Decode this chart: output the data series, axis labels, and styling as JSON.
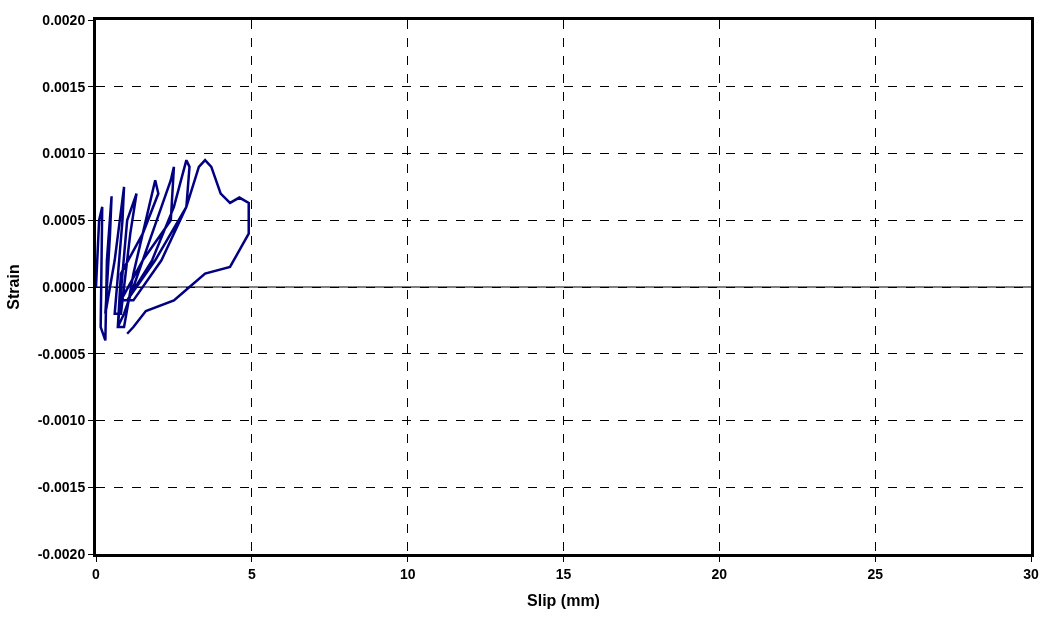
{
  "chart_data": {
    "type": "line",
    "xlabel": "Slip (mm)",
    "ylabel": "Strain",
    "xlim": [
      0,
      30
    ],
    "xticks": [
      0,
      5,
      10,
      15,
      20,
      25,
      30
    ],
    "ylim": [
      -0.002,
      0.002
    ],
    "yticks": [
      {
        "value": -0.002,
        "label": "-0.0020"
      },
      {
        "value": -0.0015,
        "label": "-0.0015"
      },
      {
        "value": -0.001,
        "label": "-0.0010"
      },
      {
        "value": -0.0005,
        "label": "-0.0005"
      },
      {
        "value": 0,
        "label": "0.0000"
      },
      {
        "value": 0.0005,
        "label": "0.0005"
      },
      {
        "value": 0.001,
        "label": "0.0010"
      },
      {
        "value": 0.0015,
        "label": "0.0015"
      },
      {
        "value": 0.002,
        "label": "0.0020"
      }
    ],
    "grid": true,
    "marker": "none",
    "line_style": "solid",
    "ref_lines": [
      {
        "axis": "y",
        "value": 0,
        "color": "#000000",
        "line_style": "solid"
      }
    ],
    "series": [
      {
        "color": "#000080",
        "x": [
          0,
          0.1,
          0.2,
          0.15,
          0.3,
          0.35,
          0.5,
          0.45,
          0.3,
          0.6,
          0.9,
          0.85,
          0.6,
          0.8,
          1.1,
          1.3,
          1.0,
          0.7,
          0.9,
          1.2,
          1.7,
          1.9,
          2.0,
          1.5,
          0.8,
          0.7,
          0.9,
          1.5,
          2.1,
          2.4,
          2.5,
          2.4,
          1.5,
          0.8,
          1.0,
          1.8,
          2.5,
          2.9,
          3.0,
          2.9,
          1.9,
          1.0,
          1.2,
          2.1,
          2.9,
          3.3,
          3.5,
          3.7,
          4.0,
          4.3,
          4.6,
          4.9,
          4.9,
          4.3,
          3.5,
          3.0,
          2.5,
          1.6,
          1.2,
          1.0
        ],
        "values": [
          0,
          0.0005,
          0.0006,
          -0.0003,
          -0.0004,
          0.0002,
          0.00068,
          0.0004,
          -0.0002,
          0.0002,
          0.00075,
          0.0005,
          -0.0002,
          -0.0002,
          0.0004,
          0.0007,
          0.0005,
          -0.0003,
          -0.0003,
          0.0001,
          0.0006,
          0.0008,
          0.0007,
          0.0004,
          0.0001,
          -0.0003,
          -0.0002,
          0.0002,
          0.0006,
          0.0008,
          0.0009,
          0.0005,
          0.0002,
          -0.0001,
          -0.0001,
          0.0002,
          0.0006,
          0.00095,
          0.0009,
          0.0006,
          0.0002,
          -0.0001,
          -0.0001,
          0.0002,
          0.0006,
          0.0009,
          0.00095,
          0.0009,
          0.0007,
          0.00063,
          0.00067,
          0.00063,
          0.0004,
          0.00015,
          0.0001,
          0.0,
          -0.0001,
          -0.00018,
          -0.0003,
          -0.00035
        ]
      }
    ]
  }
}
